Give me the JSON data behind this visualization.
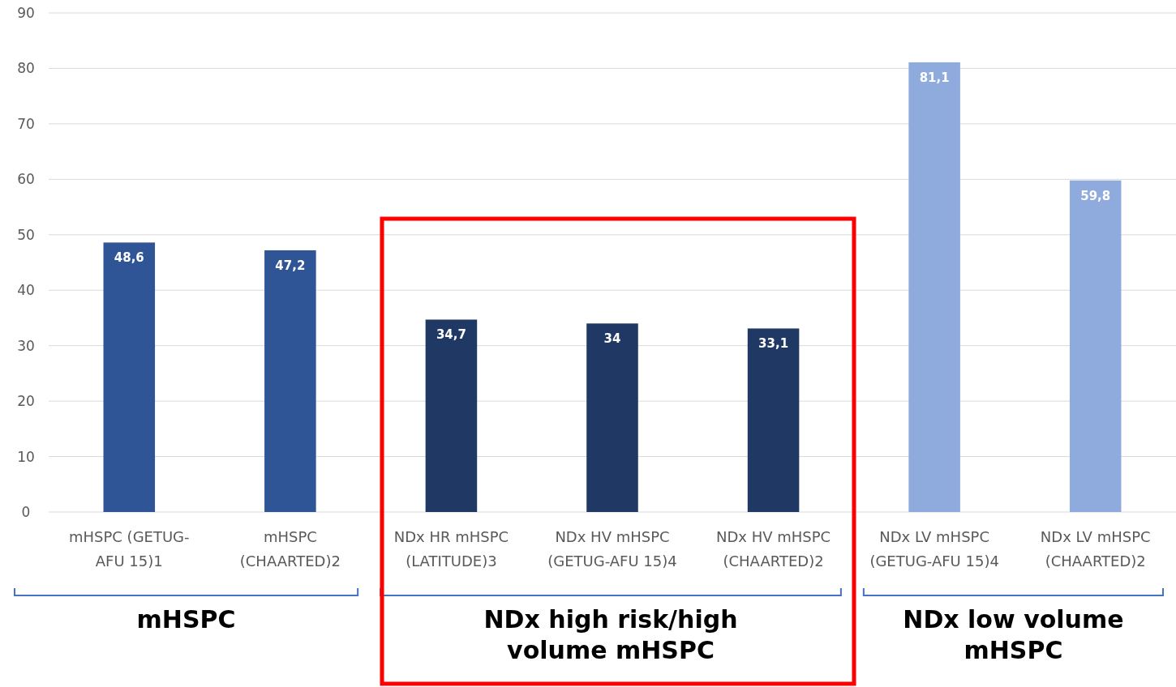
{
  "chart_data": {
    "type": "bar",
    "categories": [
      "mHSPC (GETUG-AFU 15)1",
      "mHSPC (CHAARTED)2",
      "NDx HR mHSPC (LATITUDE)3",
      "NDx HV mHSPC (GETUG-AFU 15)4",
      "NDx HV mHSPC (CHAARTED)2",
      "NDx LV mHSPC (GETUG-AFU 15)4",
      "NDx LV mHSPC (CHAARTED)2"
    ],
    "values": [
      48.6,
      47.2,
      34.7,
      34,
      33.1,
      81.1,
      59.8
    ],
    "colors": [
      "#2f5597",
      "#2f5597",
      "#1f3864",
      "#1f3864",
      "#1f3864",
      "#8faadc",
      "#8faadc"
    ],
    "value_labels": [
      "48,6",
      "47,2",
      "34,7",
      "34",
      "33,1",
      "81,1",
      "59,8"
    ],
    "ylim": [
      0,
      90
    ],
    "yticks": [
      0,
      10,
      20,
      30,
      40,
      50,
      60,
      70,
      80,
      90
    ],
    "grid": "y",
    "annotations": [
      "mHSPC",
      "NDx high risk/high volume mHSPC",
      "NDx low volume mHSPC"
    ]
  }
}
